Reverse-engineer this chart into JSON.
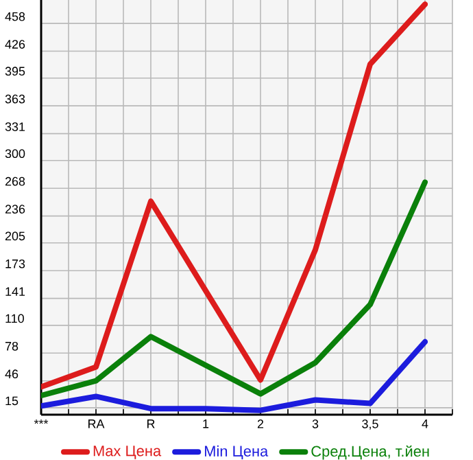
{
  "chart_data": {
    "type": "line",
    "categories": [
      "***",
      "RA",
      "R",
      "1",
      "2",
      "3",
      "3,5",
      "4"
    ],
    "series": [
      {
        "name": "Max Цена",
        "color": "#dd1c1c",
        "values": [
          39,
          62,
          253,
          150,
          47,
          197,
          411,
          480
        ]
      },
      {
        "name": "Min Цена",
        "color": "#1c1cdd",
        "values": [
          17,
          28,
          14,
          14,
          12,
          24,
          20,
          91
        ]
      },
      {
        "name": "Сред.Цена, т.йен",
        "color": "#0a800a",
        "values": [
          29,
          46,
          97,
          64,
          31,
          67,
          134,
          275
        ]
      }
    ],
    "ylim": [
      7,
      485
    ],
    "yticks": [
      15,
      46,
      78,
      110,
      141,
      173,
      205,
      236,
      268,
      300,
      331,
      363,
      395,
      426,
      458
    ],
    "grid": true,
    "legend": "bottom",
    "marker": "none",
    "line_style": "solid"
  }
}
